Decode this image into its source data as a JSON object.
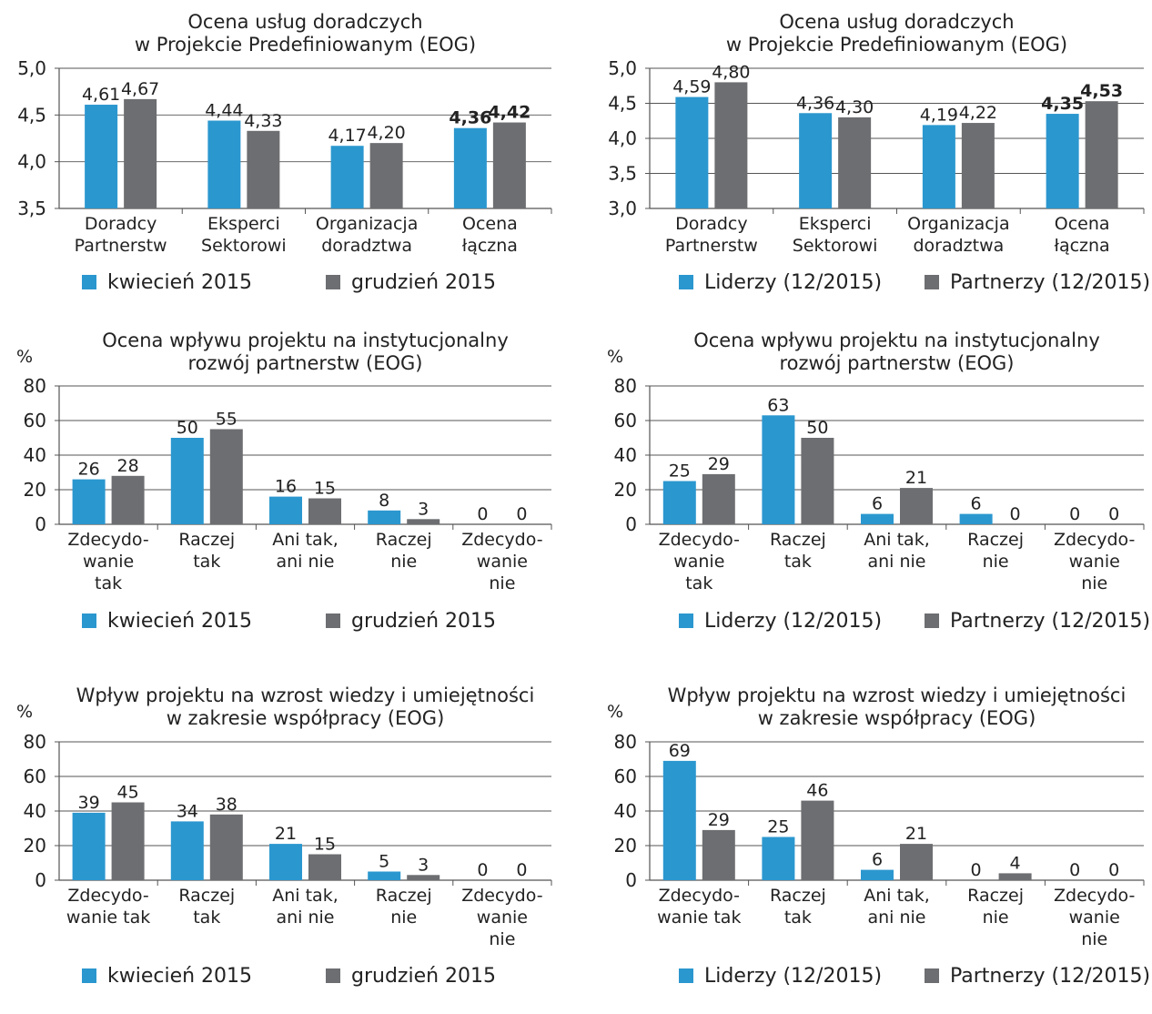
{
  "colors": {
    "series_a": "#2b97cf",
    "series_b": "#6d6e71",
    "grid": "#555555"
  },
  "chart_data": [
    {
      "type": "bar",
      "title": [
        "Ocena usług doradczych",
        "w Projekcie Predefiniowanym (EOG)"
      ],
      "unit": "",
      "ylim": [
        3.5,
        5.0
      ],
      "yticks": [
        3.5,
        4.0,
        4.5,
        5.0
      ],
      "ytick_labels": [
        "3,5",
        "4,0",
        "4,5",
        "5,0"
      ],
      "categories": [
        [
          "Doradcy",
          "Partnerstw"
        ],
        [
          "Eksperci",
          "Sektorowi"
        ],
        [
          "Organizacja",
          "doradztwa"
        ],
        [
          "Ocena",
          "łączna"
        ]
      ],
      "series": [
        {
          "name": "kwiecień 2015",
          "values": [
            4.61,
            4.44,
            4.17,
            4.36
          ],
          "labels": [
            "4,61",
            "4,44",
            "4,17",
            "4,36"
          ]
        },
        {
          "name": "grudzień 2015",
          "values": [
            4.67,
            4.33,
            4.2,
            4.42
          ],
          "labels": [
            "4,67",
            "4,33",
            "4,20",
            "4,42"
          ]
        }
      ],
      "bold_categories": [
        3
      ],
      "legend": "bottom",
      "grid": true
    },
    {
      "type": "bar",
      "title": [
        "Ocena usług doradczych",
        "w Projekcie Predefiniowanym (EOG)"
      ],
      "unit": "",
      "ylim": [
        3.0,
        5.0
      ],
      "yticks": [
        3.0,
        3.5,
        4.0,
        4.5,
        5.0
      ],
      "ytick_labels": [
        "3,0",
        "3,5",
        "4,0",
        "4,5",
        "5,0"
      ],
      "categories": [
        [
          "Doradcy",
          "Partnerstw"
        ],
        [
          "Eksperci",
          "Sektorowi"
        ],
        [
          "Organizacja",
          "doradztwa"
        ],
        [
          "Ocena",
          "łączna"
        ]
      ],
      "series": [
        {
          "name": "Liderzy (12/2015)",
          "values": [
            4.59,
            4.36,
            4.19,
            4.35
          ],
          "labels": [
            "4,59",
            "4,36",
            "4,19",
            "4,35"
          ]
        },
        {
          "name": "Partnerzy (12/2015)",
          "values": [
            4.8,
            4.3,
            4.22,
            4.53
          ],
          "labels": [
            "4,80",
            "4,30",
            "4,22",
            "4,53"
          ]
        }
      ],
      "bold_categories": [
        3
      ],
      "legend": "bottom",
      "grid": true
    },
    {
      "type": "bar",
      "title": [
        "Ocena wpływu projektu na instytucjonalny",
        "rozwój partnerstw (EOG)"
      ],
      "unit": "%",
      "ylim": [
        0,
        80
      ],
      "yticks": [
        0,
        20,
        40,
        60,
        80
      ],
      "ytick_labels": [
        "0",
        "20",
        "40",
        "60",
        "80"
      ],
      "categories": [
        [
          "Zdecydo-",
          "wanie",
          "tak"
        ],
        [
          "Raczej",
          "tak"
        ],
        [
          "Ani tak,",
          "ani nie"
        ],
        [
          "Raczej",
          "nie"
        ],
        [
          "Zdecydo-",
          "wanie",
          "nie"
        ]
      ],
      "series": [
        {
          "name": "kwiecień 2015",
          "values": [
            26,
            50,
            16,
            8,
            0
          ],
          "labels": [
            "26",
            "50",
            "16",
            "8",
            "0"
          ]
        },
        {
          "name": "grudzień 2015",
          "values": [
            28,
            55,
            15,
            3,
            0
          ],
          "labels": [
            "28",
            "55",
            "15",
            "3",
            "0"
          ]
        }
      ],
      "bold_categories": [],
      "legend": "bottom",
      "grid": true
    },
    {
      "type": "bar",
      "title": [
        "Ocena wpływu projektu na instytucjonalny",
        "rozwój partnerstw (EOG)"
      ],
      "unit": "%",
      "ylim": [
        0,
        80
      ],
      "yticks": [
        0,
        20,
        40,
        60,
        80
      ],
      "ytick_labels": [
        "0",
        "20",
        "40",
        "60",
        "80"
      ],
      "categories": [
        [
          "Zdecydo-",
          "wanie",
          "tak"
        ],
        [
          "Raczej",
          "tak"
        ],
        [
          "Ani tak,",
          "ani nie"
        ],
        [
          "Raczej",
          "nie"
        ],
        [
          "Zdecydo-",
          "wanie",
          "nie"
        ]
      ],
      "series": [
        {
          "name": "Liderzy (12/2015)",
          "values": [
            25,
            63,
            6,
            6,
            0
          ],
          "labels": [
            "25",
            "63",
            "6",
            "6",
            "0"
          ]
        },
        {
          "name": "Partnerzy (12/2015)",
          "values": [
            29,
            50,
            21,
            0,
            0
          ],
          "labels": [
            "29",
            "50",
            "21",
            "0",
            "0"
          ]
        }
      ],
      "bold_categories": [],
      "legend": "bottom",
      "grid": true
    },
    {
      "type": "bar",
      "title": [
        "Wpływ projektu na wzrost wiedzy i umiejętności",
        "w zakresie współpracy (EOG)"
      ],
      "unit": "%",
      "ylim": [
        0,
        80
      ],
      "yticks": [
        0,
        20,
        40,
        60,
        80
      ],
      "ytick_labels": [
        "0",
        "20",
        "40",
        "60",
        "80"
      ],
      "categories": [
        [
          "Zdecydo-",
          "wanie tak"
        ],
        [
          "Raczej",
          "tak"
        ],
        [
          "Ani tak,",
          "ani nie"
        ],
        [
          "Raczej",
          "nie"
        ],
        [
          "Zdecydo-",
          "wanie",
          "nie"
        ]
      ],
      "series": [
        {
          "name": "kwiecień 2015",
          "values": [
            39,
            34,
            21,
            5,
            0
          ],
          "labels": [
            "39",
            "34",
            "21",
            "5",
            "0"
          ]
        },
        {
          "name": "grudzień 2015",
          "values": [
            45,
            38,
            15,
            3,
            0
          ],
          "labels": [
            "45",
            "38",
            "15",
            "3",
            "0"
          ]
        }
      ],
      "bold_categories": [],
      "legend": "bottom",
      "grid": true
    },
    {
      "type": "bar",
      "title": [
        "Wpływ projektu na wzrost wiedzy i umiejętności",
        "w zakresie współpracy (EOG)"
      ],
      "unit": "%",
      "ylim": [
        0,
        80
      ],
      "yticks": [
        0,
        20,
        40,
        60,
        80
      ],
      "ytick_labels": [
        "0",
        "20",
        "40",
        "60",
        "80"
      ],
      "categories": [
        [
          "Zdecydo-",
          "wanie tak"
        ],
        [
          "Raczej",
          "tak"
        ],
        [
          "Ani tak,",
          "ani nie"
        ],
        [
          "Raczej",
          "nie"
        ],
        [
          "Zdecydo-",
          "wanie",
          "nie"
        ]
      ],
      "series": [
        {
          "name": "Liderzy (12/2015)",
          "values": [
            69,
            25,
            6,
            0,
            0
          ],
          "labels": [
            "69",
            "25",
            "6",
            "0",
            "0"
          ]
        },
        {
          "name": "Partnerzy (12/2015)",
          "values": [
            29,
            46,
            21,
            4,
            0
          ],
          "labels": [
            "29",
            "46",
            "21",
            "4",
            "0"
          ]
        }
      ],
      "bold_categories": [],
      "legend": "bottom",
      "grid": true
    }
  ]
}
